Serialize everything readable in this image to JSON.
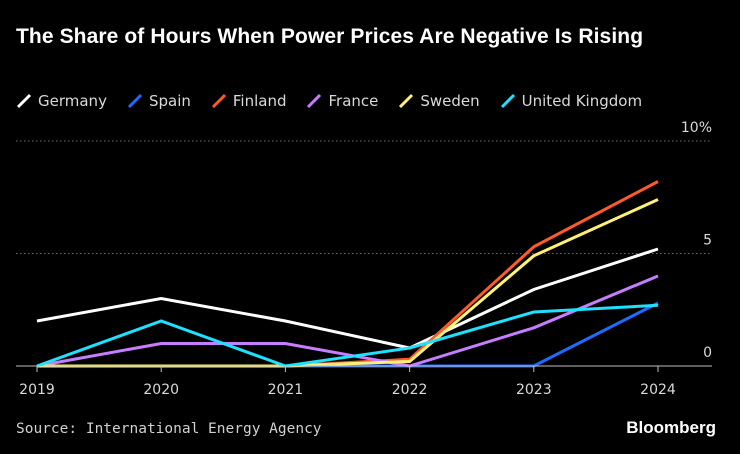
{
  "chart_data": {
    "type": "line",
    "title": "The Share of Hours When Power Prices Are Negative Is Rising",
    "x": [
      "2019",
      "2020",
      "2021",
      "2022",
      "2023",
      "2024"
    ],
    "ylim": [
      0,
      10
    ],
    "yticks": [
      {
        "value": 0,
        "label": "0"
      },
      {
        "value": 5,
        "label": "5"
      },
      {
        "value": 10,
        "label": "10%"
      }
    ],
    "series": [
      {
        "name": "Germany",
        "color": "#ffffff",
        "values": [
          2.0,
          3.0,
          2.0,
          0.8,
          3.4,
          5.2
        ]
      },
      {
        "name": "Spain",
        "color": "#1f6bff",
        "values": [
          0,
          0,
          0,
          0,
          0,
          2.8
        ]
      },
      {
        "name": "Finland",
        "color": "#ff5a2a",
        "values": [
          0,
          0,
          0,
          0.3,
          5.3,
          8.2
        ]
      },
      {
        "name": "France",
        "color": "#c77dff",
        "values": [
          0,
          1.0,
          1.0,
          0,
          1.7,
          4.0
        ]
      },
      {
        "name": "Sweden",
        "color": "#fff176",
        "values": [
          0,
          0,
          0,
          0.2,
          4.9,
          7.4
        ]
      },
      {
        "name": "United Kingdom",
        "color": "#1fe0ff",
        "values": [
          0,
          2.0,
          0,
          0.8,
          2.4,
          2.7
        ]
      }
    ],
    "grid": true,
    "legend": "top-left"
  },
  "footer": {
    "source": "Source: International Energy Agency",
    "brand": "Bloomberg"
  }
}
